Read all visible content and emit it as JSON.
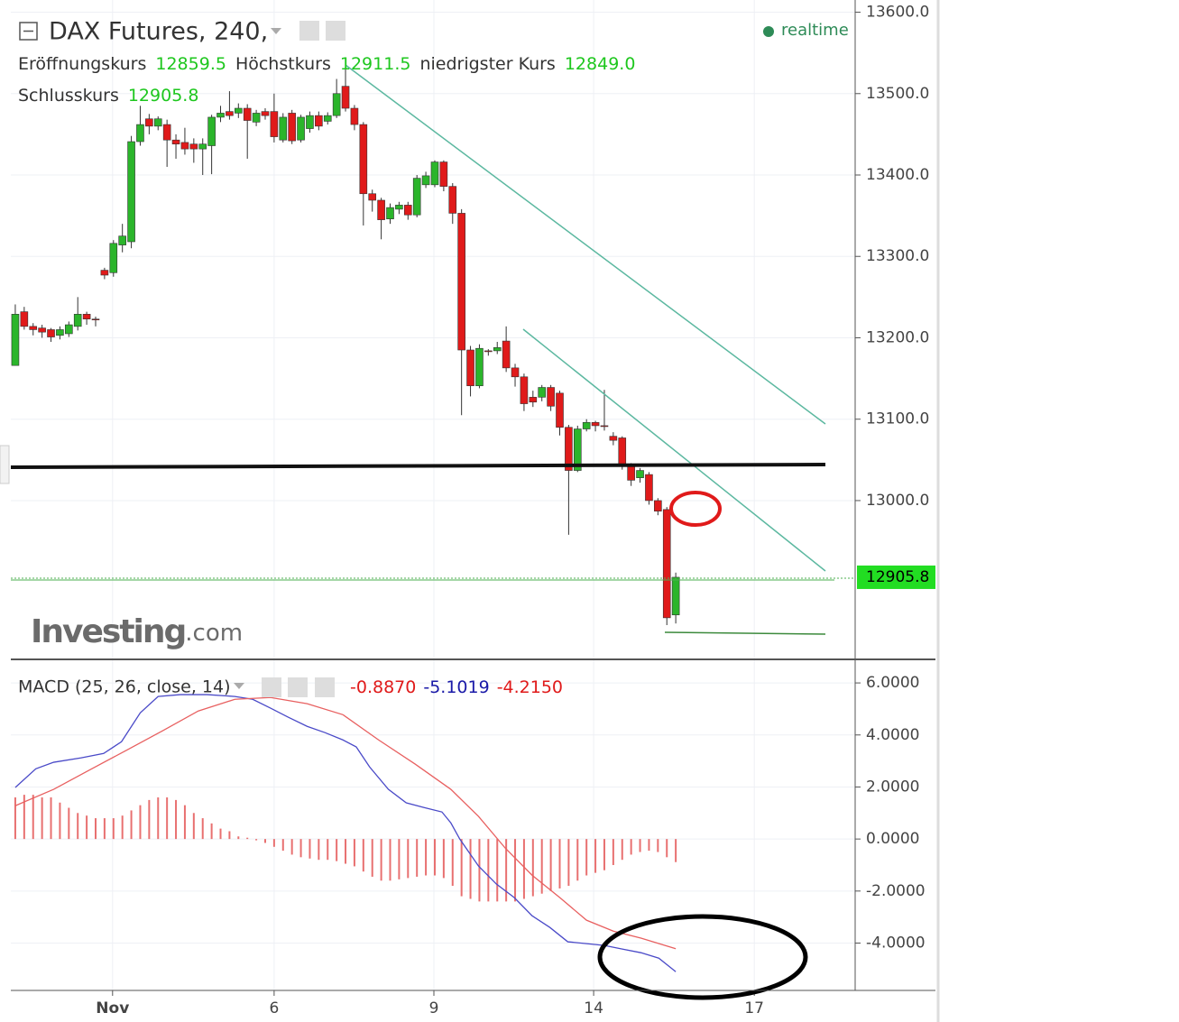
{
  "chart_data": [
    {
      "type": "candlestick",
      "title": "DAX Futures, 240,",
      "status": "realtime",
      "watermark": "Investing",
      "watermark_suffix": ".com",
      "readouts": [
        {
          "name": "Eröffnungskurs",
          "value": 12859.5
        },
        {
          "name": "Höchstkurs",
          "value": 12911.5
        },
        {
          "name": "niedrigster Kurs",
          "value": 12849,
          "label": "12849.0"
        },
        {
          "name": "Schlusskurs",
          "value": 12905.8
        }
      ],
      "up_color": "#2bb52b",
      "down_color": "#e01a1a",
      "open": [
        13166,
        13232,
        13214,
        13212,
        13210,
        13203,
        13205,
        13214,
        13229,
        13223,
        13283,
        13280,
        13314,
        13318,
        13441,
        13469,
        13460,
        13462,
        13443,
        13440,
        13438,
        13432,
        13436,
        13471,
        13478,
        13476,
        13482,
        13465,
        13478,
        13478,
        13443,
        13476,
        13443,
        13457,
        13473,
        13466,
        13473,
        13509,
        13482,
        13462,
        13377,
        13369,
        13346,
        13358,
        13363,
        13351,
        13388,
        13388,
        13416,
        13386,
        13353,
        13185,
        13141,
        13184,
        13184,
        13196,
        13163,
        13152,
        13127,
        13127,
        13139,
        13132,
        13090,
        13037,
        13088,
        13096,
        13092,
        13079,
        13077,
        13042,
        13028,
        13032,
        13000,
        12989,
        12859.5
      ],
      "high": [
        13241,
        13238,
        13218,
        13216,
        13212,
        13214,
        13220,
        13250,
        13232,
        13226,
        13286,
        13320,
        13340,
        13448,
        13485,
        13475,
        13472,
        13468,
        13450,
        13458,
        13445,
        13445,
        13474,
        13485,
        13503,
        13488,
        13487,
        13480,
        13482,
        13500,
        13476,
        13480,
        13474,
        13478,
        13478,
        13477,
        13518,
        13532,
        13486,
        13465,
        13382,
        13372,
        13365,
        13367,
        13367,
        13400,
        13404,
        13418,
        13418,
        13390,
        13358,
        13190,
        13192,
        13186,
        13195,
        13214,
        13168,
        13156,
        13135,
        13142,
        13142,
        13135,
        13093,
        13092,
        13100,
        13098,
        13136,
        13084,
        13079,
        13046,
        13040,
        13035,
        13003,
        12992,
        12911.5
      ],
      "low": [
        13166,
        13210,
        13203,
        13200,
        13195,
        13198,
        13201,
        13209,
        13216,
        13214,
        13272,
        13275,
        13305,
        13310,
        13436,
        13450,
        13455,
        13410,
        13420,
        13425,
        13415,
        13400,
        13401,
        13465,
        13468,
        13470,
        13420,
        13460,
        13468,
        13440,
        13440,
        13438,
        13440,
        13452,
        13455,
        13462,
        13470,
        13478,
        13455,
        13338,
        13355,
        13321,
        13340,
        13352,
        13345,
        13348,
        13384,
        13385,
        13380,
        13340,
        13105,
        13128,
        13138,
        13178,
        13180,
        13158,
        13140,
        13110,
        13115,
        13122,
        13110,
        13080,
        12958,
        13035,
        13085,
        13085,
        13086,
        13068,
        13038,
        13018,
        13022,
        12995,
        12982,
        12847,
        12849
      ],
      "close": [
        13229,
        13214,
        13210,
        13207,
        13201,
        13210,
        13216,
        13229,
        13223,
        13222,
        13277,
        13316,
        13325,
        13441,
        13462,
        13460,
        13469,
        13443,
        13438,
        13432,
        13432,
        13438,
        13471,
        13476,
        13473,
        13482,
        13467,
        13476,
        13473,
        13447,
        13471,
        13442,
        13471,
        13473,
        13460,
        13473,
        13500,
        13482,
        13462,
        13377,
        13369,
        13345,
        13360,
        13363,
        13351,
        13396,
        13399,
        13416,
        13386,
        13353,
        13185,
        13141,
        13187,
        13183,
        13188,
        13163,
        13152,
        13119,
        13121,
        13139,
        13116,
        13090,
        13037,
        13088,
        13096,
        13092,
        13091,
        13074,
        13042,
        13025,
        13037,
        13000,
        12987,
        12856,
        12905.8
      ],
      "xlim": [
        -0.5,
        94.1
      ],
      "xticks": [
        {
          "value": 10.9,
          "label": "Nov"
        },
        {
          "value": 29,
          "label": "6"
        },
        {
          "value": 46.9,
          "label": "9"
        },
        {
          "value": 64.8,
          "label": "14"
        },
        {
          "value": 82.8,
          "label": "17"
        }
      ],
      "ylim": [
        12806,
        13615
      ],
      "yticks": [
        {
          "value": 13600,
          "label": "13600.0"
        },
        {
          "value": 13500,
          "label": "13500.0"
        },
        {
          "value": 13400,
          "label": "13400.0"
        },
        {
          "value": 13300,
          "label": "13300.0"
        },
        {
          "value": 13200,
          "label": "13200.0"
        },
        {
          "value": 13100,
          "label": "13100.0"
        },
        {
          "value": 13000,
          "label": "13000.0"
        }
      ],
      "grid": true
    },
    {
      "type": "macd",
      "title": "MACD (25, 26, close, 14)",
      "readouts": [
        {
          "value": -0.887,
          "label": "-0.8870",
          "color": "#e01a1a"
        },
        {
          "value": -5.1019,
          "label": "-5.1019",
          "color": "#1a1aa8"
        },
        {
          "value": -4.215,
          "label": "-4.2150",
          "color": "#e01a1a"
        }
      ],
      "histogram": {
        "color": "#e87070",
        "values": [
          1.6,
          1.7,
          1.7,
          1.6,
          1.6,
          1.4,
          1.2,
          1.0,
          0.9,
          0.8,
          0.8,
          0.8,
          0.9,
          1.1,
          1.3,
          1.5,
          1.6,
          1.6,
          1.5,
          1.3,
          1.0,
          0.8,
          0.6,
          0.4,
          0.3,
          0.1,
          0.05,
          -0.05,
          -0.15,
          -0.3,
          -0.45,
          -0.6,
          -0.7,
          -0.75,
          -0.8,
          -0.8,
          -0.85,
          -0.95,
          -1.05,
          -1.25,
          -1.45,
          -1.6,
          -1.6,
          -1.55,
          -1.5,
          -1.45,
          -1.4,
          -1.4,
          -1.5,
          -1.8,
          -2.2,
          -2.3,
          -2.4,
          -2.4,
          -2.4,
          -2.4,
          -2.4,
          -2.3,
          -2.2,
          -2.1,
          -2.0,
          -1.9,
          -1.8,
          -1.6,
          -1.4,
          -1.3,
          -1.2,
          -1.0,
          -0.8,
          -0.6,
          -0.5,
          -0.45,
          -0.5,
          -0.7,
          -0.887
        ]
      },
      "series": [
        {
          "color": "#4a4ac8",
          "x": [
            0,
            2.3,
            4.3,
            7.4,
            9.9,
            11.9,
            14,
            16,
            18.5,
            21.5,
            24.6,
            26.6,
            28.6,
            30.6,
            32.7,
            34.7,
            36.7,
            38.2,
            39.7,
            41.8,
            43.8,
            45.8,
            47.8,
            48.8,
            49.8,
            51.9,
            53.9,
            55.9,
            57.9,
            59.9,
            61.9,
            64,
            66,
            68,
            70.1,
            72.1,
            74
          ],
          "values": [
            1.98,
            2.7,
            2.95,
            3.12,
            3.29,
            3.74,
            4.85,
            5.48,
            5.55,
            5.55,
            5.48,
            5.37,
            5.03,
            4.68,
            4.33,
            4.09,
            3.81,
            3.54,
            2.77,
            1.91,
            1.39,
            1.21,
            1.04,
            0.62,
            0,
            -1.04,
            -1.73,
            -2.25,
            -2.95,
            -3.4,
            -3.95,
            -4.02,
            -4.09,
            -4.23,
            -4.37,
            -4.58,
            -5.1019
          ]
        },
        {
          "color": "#e86060",
          "x": [
            0,
            4.3,
            8.4,
            12.4,
            16.5,
            20.5,
            24.6,
            28.6,
            32.7,
            36.7,
            40.7,
            44.8,
            48.8,
            51.9,
            54.9,
            57.9,
            61,
            64,
            67,
            70.1,
            74
          ],
          "values": [
            1.28,
            1.91,
            2.67,
            3.4,
            4.16,
            4.92,
            5.37,
            5.44,
            5.2,
            4.78,
            3.81,
            2.88,
            1.91,
            0.87,
            -0.35,
            -1.39,
            -2.25,
            -3.12,
            -3.54,
            -3.81,
            -4.215
          ]
        }
      ],
      "ylim": [
        -5.82,
        6.87
      ],
      "yticks": [
        {
          "value": 6,
          "label": "6.0000"
        },
        {
          "value": 4,
          "label": "4.0000"
        },
        {
          "value": 2,
          "label": "2.0000"
        },
        {
          "value": 0,
          "label": "0.0000"
        },
        {
          "value": -2,
          "label": "-2.0000"
        },
        {
          "value": -4,
          "label": "-4.0000"
        }
      ],
      "grid": true
    }
  ]
}
